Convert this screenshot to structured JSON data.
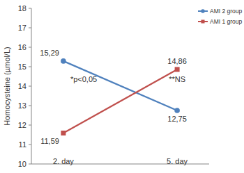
{
  "chart_data": {
    "type": "line",
    "y_label": "Homocysteine  (µmol/L)",
    "categories": [
      "2. day",
      "5. day"
    ],
    "series": [
      {
        "name": "AMI 2 group",
        "color": "#4f81bd",
        "marker": "circle",
        "values": [
          15.29,
          12.75
        ],
        "value_labels": [
          "15,29",
          "12,75"
        ]
      },
      {
        "name": "AMI 1 group",
        "color": "#c0504d",
        "marker": "square",
        "values": [
          11.59,
          14.86
        ],
        "value_labels": [
          "11,59",
          "14,86"
        ]
      }
    ],
    "ylim": [
      10,
      18
    ],
    "yticks": [
      10,
      11,
      12,
      13,
      14,
      15,
      16,
      17,
      18
    ],
    "grid": false,
    "legend": "top-right",
    "data_labels": true,
    "annotations": [
      "*p<0,05",
      "**NS"
    ]
  }
}
